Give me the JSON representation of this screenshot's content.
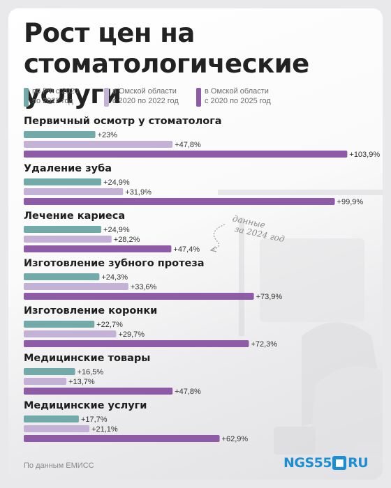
{
  "title_lines": [
    "Рост цен на",
    "стоматологические услуги"
  ],
  "legend": [
    {
      "text": "по РФ с 2020\nпо 2022 год",
      "color": "#72aaaa"
    },
    {
      "text": "в Омской области\nс 2020 по 2022 год",
      "color": "#c4b2d6"
    },
    {
      "text": "в Омской области\nс 2020 по 2025 год",
      "color": "#8e5ba7"
    }
  ],
  "annotation": "данные\nза 2024 год",
  "footer": "По данным ЕМИСС",
  "logo": {
    "brand": "NGS55",
    "box": "■",
    "domain": "RU"
  },
  "chart_data": {
    "type": "bar",
    "orientation": "horizontal",
    "title": "Рост цен на стоматологические услуги",
    "categories": [
      "Первичный осмотр у стоматолога",
      "Удаление зуба",
      "Лечение кариеса",
      "Изготовление зубного протеза",
      "Изготовление коронки",
      "Медицинские товары",
      "Медицинские услуги"
    ],
    "series": [
      {
        "name": "по РФ с 2020 по 2022 год",
        "color": "#72aaaa",
        "values": [
          23,
          24.9,
          24.9,
          24.3,
          22.7,
          16.5,
          17.7
        ],
        "labels": [
          "+23%",
          "+24,9%",
          "+24,9%",
          "+24,3%",
          "+22,7%",
          "+16,5%",
          "+17,7%"
        ]
      },
      {
        "name": "в Омской области с 2020 по 2022 год",
        "color": "#c4b2d6",
        "values": [
          47.8,
          31.9,
          28.2,
          33.6,
          29.7,
          13.7,
          21.1
        ],
        "labels": [
          "+47,8%",
          "+31,9%",
          "+28,2%",
          "+33,6%",
          "+29,7%",
          "+13,7%",
          "+21,1%"
        ]
      },
      {
        "name": "в Омской области с 2020 по 2025 год",
        "color": "#8e5ba7",
        "values": [
          103.9,
          99.9,
          47.4,
          73.9,
          72.3,
          47.8,
          62.9
        ],
        "labels": [
          "+103,9%",
          "+99,9%",
          "+47,4%",
          "+73,9%",
          "+72,3%",
          "+47,8%",
          "+62,9%"
        ]
      }
    ]
  }
}
